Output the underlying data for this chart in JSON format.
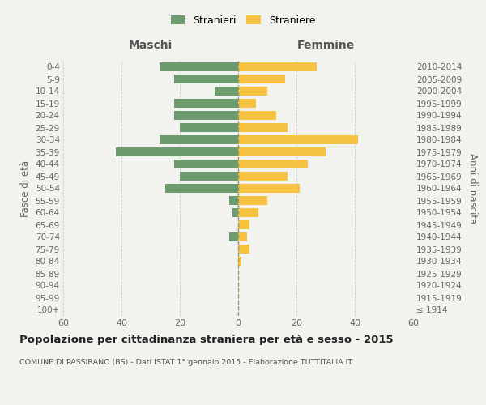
{
  "age_groups": [
    "100+",
    "95-99",
    "90-94",
    "85-89",
    "80-84",
    "75-79",
    "70-74",
    "65-69",
    "60-64",
    "55-59",
    "50-54",
    "45-49",
    "40-44",
    "35-39",
    "30-34",
    "25-29",
    "20-24",
    "15-19",
    "10-14",
    "5-9",
    "0-4"
  ],
  "birth_years": [
    "≤ 1914",
    "1915-1919",
    "1920-1924",
    "1925-1929",
    "1930-1934",
    "1935-1939",
    "1940-1944",
    "1945-1949",
    "1950-1954",
    "1955-1959",
    "1960-1964",
    "1965-1969",
    "1970-1974",
    "1975-1979",
    "1980-1984",
    "1985-1989",
    "1990-1994",
    "1995-1999",
    "2000-2004",
    "2005-2009",
    "2010-2014"
  ],
  "maschi": [
    0,
    0,
    0,
    0,
    0,
    0,
    3,
    0,
    2,
    3,
    25,
    20,
    22,
    42,
    27,
    20,
    22,
    22,
    8,
    22,
    27
  ],
  "femmine": [
    0,
    0,
    0,
    0,
    1,
    4,
    3,
    4,
    7,
    10,
    21,
    17,
    24,
    30,
    41,
    17,
    13,
    6,
    10,
    16,
    27
  ],
  "color_maschi": "#6e9b6e",
  "color_femmine": "#f5c242",
  "background_color": "#f2f2ee",
  "grid_color": "#cccccc",
  "title": "Popolazione per cittadinanza straniera per età e sesso - 2015",
  "subtitle": "COMUNE DI PASSIRANO (BS) - Dati ISTAT 1° gennaio 2015 - Elaborazione TUTTITALIA.IT",
  "xlabel_left": "Maschi",
  "xlabel_right": "Femmine",
  "ylabel_left": "Fasce di età",
  "ylabel_right": "Anni di nascita",
  "legend_stranieri": "Stranieri",
  "legend_straniere": "Straniere",
  "xlim": 60,
  "xtick_labels": [
    "60",
    "40",
    "20",
    "0",
    "20",
    "40",
    "60"
  ],
  "vline_color": "#999966"
}
